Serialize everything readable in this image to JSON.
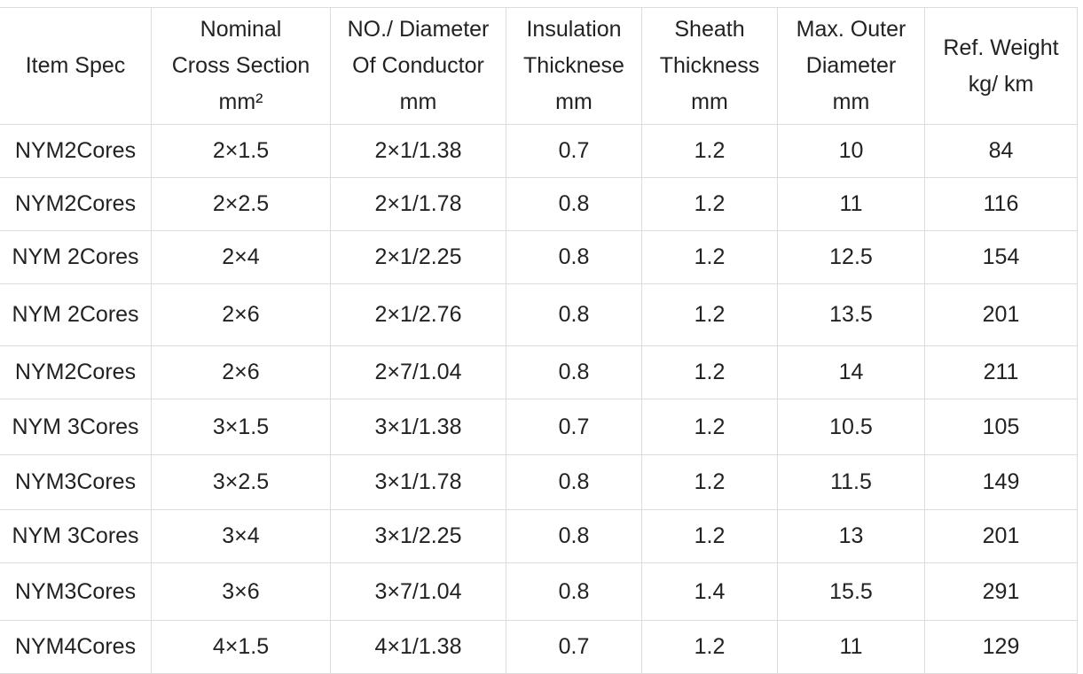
{
  "table": {
    "header": [
      [
        "Item Spec"
      ],
      [
        "Nominal",
        "Cross Section",
        "mm²"
      ],
      [
        "NO./ Diameter",
        "Of Conductor",
        "mm"
      ],
      [
        "Insulation",
        "Thicknese",
        "mm"
      ],
      [
        "Sheath",
        "Thickness",
        "mm"
      ],
      [
        "Max. Outer",
        "Diameter",
        "mm"
      ],
      [
        "Ref. Weight",
        "kg/ km"
      ]
    ],
    "rows": [
      [
        "NYM2Cores",
        "2×1.5",
        "2×1/1.38",
        "0.7",
        "1.2",
        "10",
        "84"
      ],
      [
        "NYM2Cores",
        "2×2.5",
        "2×1/1.78",
        "0.8",
        "1.2",
        "11",
        "116"
      ],
      [
        "NYM 2Cores",
        "2×4",
        "2×1/2.25",
        "0.8",
        "1.2",
        "12.5",
        "154"
      ],
      [
        "NYM 2Cores",
        "2×6",
        "2×1/2.76",
        "0.8",
        "1.2",
        "13.5",
        "201"
      ],
      [
        "NYM2Cores",
        "2×6",
        "2×7/1.04",
        "0.8",
        "1.2",
        "14",
        "211"
      ],
      [
        "NYM 3Cores",
        "3×1.5",
        "3×1/1.38",
        "0.7",
        "1.2",
        "10.5",
        "105"
      ],
      [
        "NYM3Cores",
        "3×2.5",
        "3×1/1.78",
        "0.8",
        "1.2",
        "11.5",
        "149"
      ],
      [
        "NYM 3Cores",
        "3×4",
        "3×1/2.25",
        "0.8",
        "1.2",
        "13",
        "201"
      ],
      [
        "NYM3Cores",
        "3×6",
        "3×7/1.04",
        "0.8",
        "1.4",
        "15.5",
        "291"
      ],
      [
        "NYM4Cores",
        "4×1.5",
        "4×1/1.38",
        "0.7",
        "1.2",
        "11",
        "129"
      ]
    ]
  }
}
